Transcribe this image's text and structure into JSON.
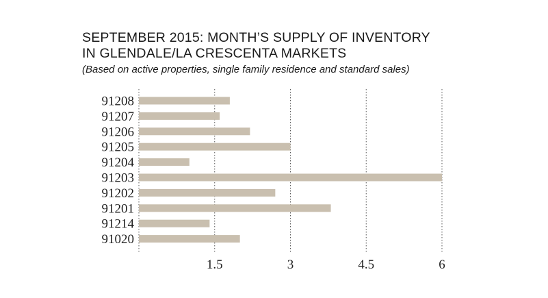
{
  "chart_data": {
    "type": "bar",
    "orientation": "horizontal",
    "title_line1": "SEPTEMBER 2015: MONTH’S SUPPLY OF INVENTORY",
    "title_line2": "IN GLENDALE/LA CRESCENTA MARKETS",
    "subtitle": "(Based on active properties, single family residence and standard sales)",
    "xlabel": "",
    "ylabel": "",
    "categories": [
      "91208",
      "91207",
      "91206",
      "91205",
      "91204",
      "91203",
      "91202",
      "91201",
      "91214",
      "91020"
    ],
    "values": [
      1.8,
      1.6,
      2.2,
      3.0,
      1.0,
      6.0,
      2.7,
      3.8,
      1.4,
      2.0
    ],
    "xlim": [
      0,
      6
    ],
    "xticks": [
      1.5,
      3,
      4.5,
      6
    ],
    "xtick_labels": [
      "1.5",
      "3",
      "4.5",
      "6"
    ],
    "grid": "vertical dotted lines at each tick",
    "legend": "none",
    "bar_color": "#c9bfaf"
  }
}
